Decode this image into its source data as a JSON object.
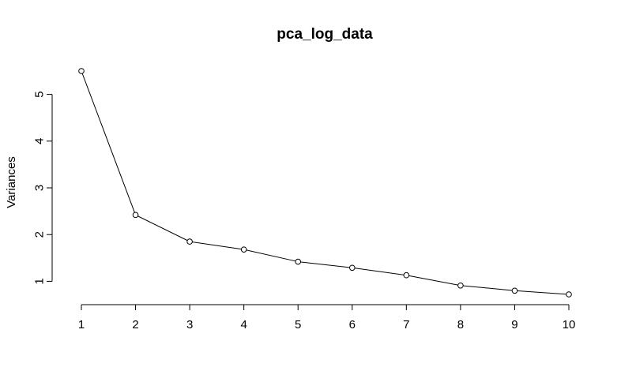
{
  "chart_data": {
    "type": "line",
    "title": "pca_log_data",
    "xlabel": "",
    "ylabel": "Variances",
    "x": [
      1,
      2,
      3,
      4,
      5,
      6,
      7,
      8,
      9,
      10
    ],
    "values": [
      5.5,
      2.42,
      1.85,
      1.68,
      1.42,
      1.29,
      1.13,
      0.91,
      0.8,
      0.72
    ],
    "x_ticks": [
      "1",
      "2",
      "3",
      "4",
      "5",
      "6",
      "7",
      "8",
      "9",
      "10"
    ],
    "y_ticks": [
      "1",
      "2",
      "3",
      "4",
      "5"
    ],
    "xlim": [
      1,
      10
    ],
    "ylim": [
      0.72,
      5.5
    ],
    "grid": false,
    "marker": "open-circle",
    "line_color": "#000000"
  }
}
